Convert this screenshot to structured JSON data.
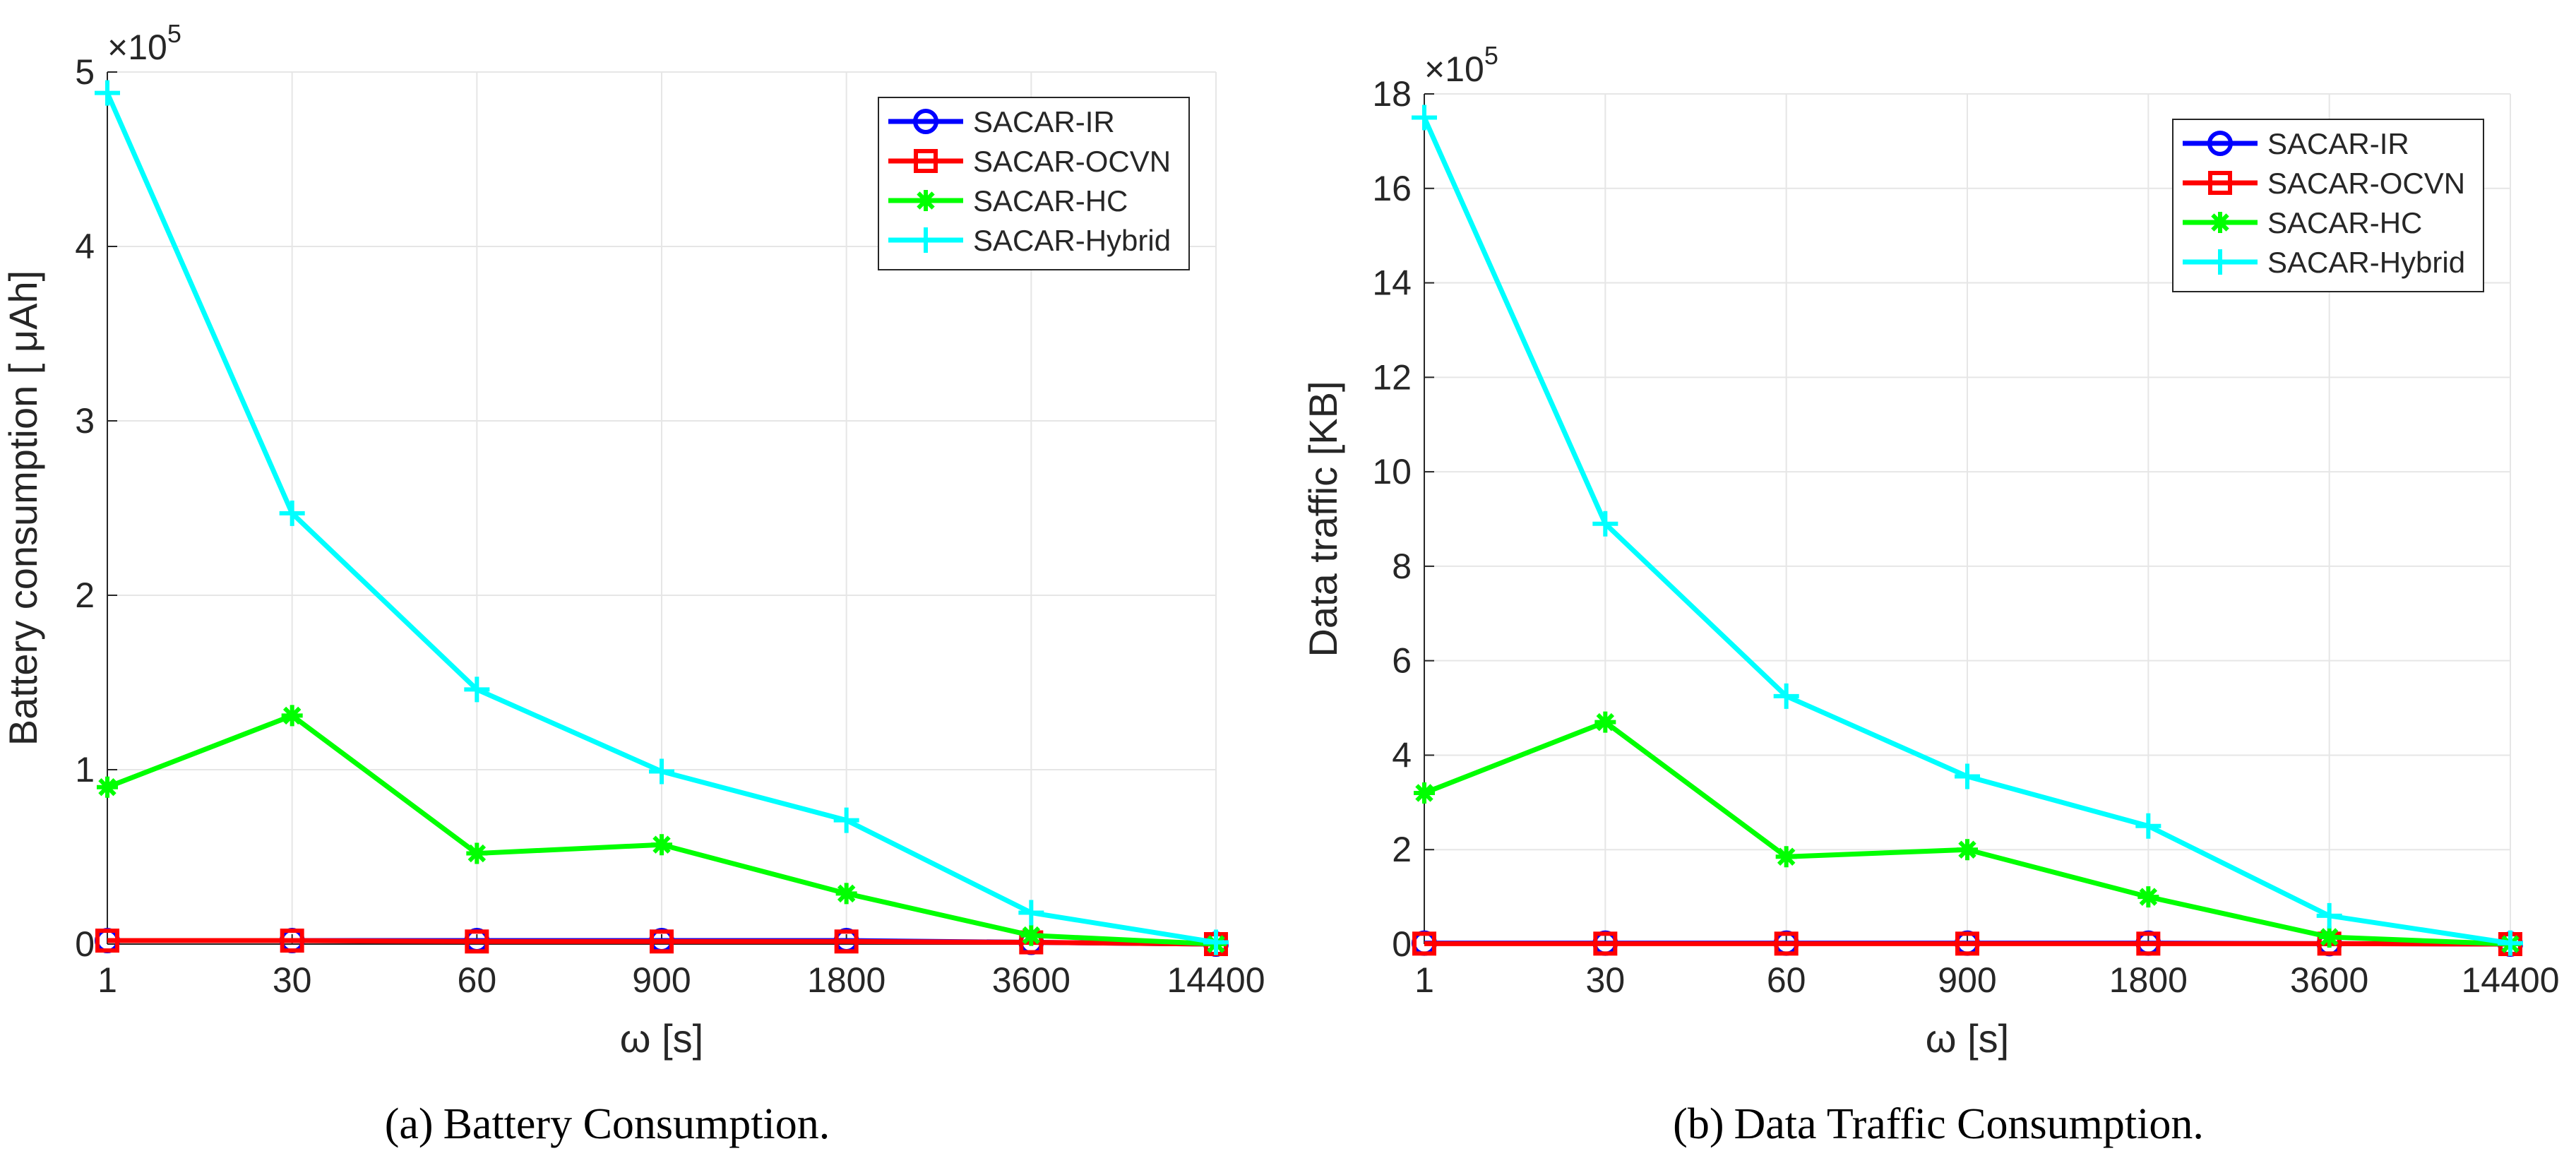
{
  "chart_data": [
    {
      "type": "line",
      "panel": "a",
      "caption_letter": "(a)",
      "caption_text": "Battery Consumption.",
      "xlabel": "ω [s]",
      "ylabel": "Battery consumption [  μAh]",
      "y_multiplier": "×10",
      "y_multiplier_exp": "5",
      "categories": [
        "1",
        "30",
        "60",
        "900",
        "1800",
        "3600",
        "14400"
      ],
      "ylim": [
        0,
        5
      ],
      "yticks": [
        0,
        1,
        2,
        3,
        4,
        5
      ],
      "grid": true,
      "legend_position": "top-right",
      "series": [
        {
          "name": "SACAR-IR",
          "color": "#0000ff",
          "marker": "circle",
          "values": [
            0.02,
            0.02,
            0.02,
            0.02,
            0.02,
            0.01,
            0.0
          ]
        },
        {
          "name": "SACAR-OCVN",
          "color": "#ff0000",
          "marker": "square",
          "values": [
            0.02,
            0.02,
            0.015,
            0.015,
            0.015,
            0.01,
            0.0
          ]
        },
        {
          "name": "SACAR-HC",
          "color": "#00ff00",
          "marker": "asterisk",
          "values": [
            0.9,
            1.31,
            0.52,
            0.57,
            0.29,
            0.05,
            0.0
          ]
        },
        {
          "name": "SACAR-Hybrid",
          "color": "#00ffff",
          "marker": "plus",
          "values": [
            4.88,
            2.47,
            1.46,
            0.99,
            0.71,
            0.18,
            0.01
          ]
        }
      ]
    },
    {
      "type": "line",
      "panel": "b",
      "caption_letter": "(b)",
      "caption_text": "Data Traffic Consumption.",
      "xlabel": "ω [s]",
      "ylabel": "Data traffic [KB]",
      "y_multiplier": "×10",
      "y_multiplier_exp": "5",
      "categories": [
        "1",
        "30",
        "60",
        "900",
        "1800",
        "3600",
        "14400"
      ],
      "ylim": [
        0,
        18
      ],
      "yticks": [
        0,
        2,
        4,
        6,
        8,
        10,
        12,
        14,
        16,
        18
      ],
      "grid": true,
      "legend_position": "top-right",
      "series": [
        {
          "name": "SACAR-IR",
          "color": "#0000ff",
          "marker": "circle",
          "values": [
            0.02,
            0.02,
            0.02,
            0.02,
            0.02,
            0.01,
            0.0
          ]
        },
        {
          "name": "SACAR-OCVN",
          "color": "#ff0000",
          "marker": "square",
          "values": [
            0.01,
            0.01,
            0.01,
            0.01,
            0.01,
            0.01,
            0.0
          ]
        },
        {
          "name": "SACAR-HC",
          "color": "#00ff00",
          "marker": "asterisk",
          "values": [
            3.2,
            4.7,
            1.85,
            2.0,
            1.0,
            0.15,
            0.0
          ]
        },
        {
          "name": "SACAR-Hybrid",
          "color": "#00ffff",
          "marker": "plus",
          "values": [
            17.5,
            8.9,
            5.25,
            3.55,
            2.5,
            0.6,
            0.02
          ]
        }
      ]
    }
  ]
}
